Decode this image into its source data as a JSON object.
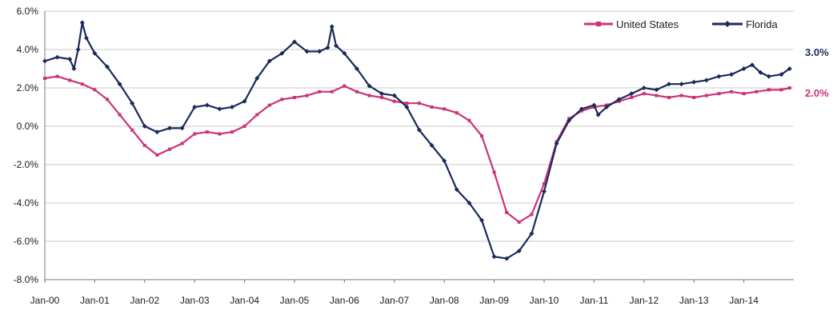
{
  "chart_data": {
    "type": "line",
    "title": "",
    "xlabel": "",
    "ylabel": "",
    "ylim": [
      -8.0,
      6.0
    ],
    "ytick_values": [
      6,
      4,
      2,
      0,
      -2,
      -4,
      -6,
      -8
    ],
    "ytick_labels": [
      "6.0%",
      "4.0%",
      "2.0%",
      "0.0%",
      "-2.0%",
      "-4.0%",
      "-6.0%",
      "-8.0%"
    ],
    "x_ticks": [
      "Jan-00",
      "Jan-01",
      "Jan-02",
      "Jan-03",
      "Jan-04",
      "Jan-05",
      "Jan-06",
      "Jan-07",
      "Jan-08",
      "Jan-09",
      "Jan-10",
      "Jan-11",
      "Jan-12",
      "Jan-13",
      "Jan-14"
    ],
    "x_range": [
      "Jan-00",
      "Dec-14"
    ],
    "grid": "horizontal",
    "legend_position": "top-right",
    "colors": {
      "united_states": "#cc3377",
      "florida": "#1a2a5a",
      "grid": "#c8c8c8"
    },
    "series": [
      {
        "name": "United States",
        "points": [
          [
            "Jan-00",
            2.5
          ],
          [
            "Apr-00",
            2.6
          ],
          [
            "Jul-00",
            2.4
          ],
          [
            "Oct-00",
            2.2
          ],
          [
            "Jan-01",
            1.9
          ],
          [
            "Apr-01",
            1.4
          ],
          [
            "Jul-01",
            0.6
          ],
          [
            "Oct-01",
            -0.2
          ],
          [
            "Jan-02",
            -1.0
          ],
          [
            "Apr-02",
            -1.5
          ],
          [
            "Jul-02",
            -1.2
          ],
          [
            "Oct-02",
            -0.9
          ],
          [
            "Jan-03",
            -0.4
          ],
          [
            "Apr-03",
            -0.3
          ],
          [
            "Jul-03",
            -0.4
          ],
          [
            "Oct-03",
            -0.3
          ],
          [
            "Jan-04",
            0.0
          ],
          [
            "Apr-04",
            0.6
          ],
          [
            "Jul-04",
            1.1
          ],
          [
            "Oct-04",
            1.4
          ],
          [
            "Jan-05",
            1.5
          ],
          [
            "Apr-05",
            1.6
          ],
          [
            "Jul-05",
            1.8
          ],
          [
            "Oct-05",
            1.8
          ],
          [
            "Jan-06",
            2.1
          ],
          [
            "Apr-06",
            1.8
          ],
          [
            "Jul-06",
            1.6
          ],
          [
            "Oct-06",
            1.5
          ],
          [
            "Jan-07",
            1.3
          ],
          [
            "Apr-07",
            1.2
          ],
          [
            "Jul-07",
            1.2
          ],
          [
            "Oct-07",
            1.0
          ],
          [
            "Jan-08",
            0.9
          ],
          [
            "Apr-08",
            0.7
          ],
          [
            "Jul-08",
            0.3
          ],
          [
            "Oct-08",
            -0.5
          ],
          [
            "Jan-09",
            -2.4
          ],
          [
            "Apr-09",
            -4.5
          ],
          [
            "Jul-09",
            -5.0
          ],
          [
            "Oct-09",
            -4.6
          ],
          [
            "Jan-10",
            -3.0
          ],
          [
            "Apr-10",
            -0.8
          ],
          [
            "Jul-10",
            0.4
          ],
          [
            "Oct-10",
            0.8
          ],
          [
            "Jan-11",
            1.0
          ],
          [
            "Apr-11",
            1.1
          ],
          [
            "Jul-11",
            1.3
          ],
          [
            "Oct-11",
            1.5
          ],
          [
            "Jan-12",
            1.7
          ],
          [
            "Apr-12",
            1.6
          ],
          [
            "Jul-12",
            1.5
          ],
          [
            "Oct-12",
            1.6
          ],
          [
            "Jan-13",
            1.5
          ],
          [
            "Apr-13",
            1.6
          ],
          [
            "Jul-13",
            1.7
          ],
          [
            "Oct-13",
            1.8
          ],
          [
            "Jan-14",
            1.7
          ],
          [
            "Apr-14",
            1.8
          ],
          [
            "Jul-14",
            1.9
          ],
          [
            "Oct-14",
            1.9
          ],
          [
            "Dec-14",
            2.0
          ]
        ],
        "end_label": "2.0%"
      },
      {
        "name": "Florida",
        "points": [
          [
            "Jan-00",
            3.4
          ],
          [
            "Apr-00",
            3.6
          ],
          [
            "Jul-00",
            3.5
          ],
          [
            "Aug-00",
            3.0
          ],
          [
            "Sep-00",
            4.0
          ],
          [
            "Oct-00",
            5.4
          ],
          [
            "Nov-00",
            4.6
          ],
          [
            "Jan-01",
            3.8
          ],
          [
            "Apr-01",
            3.1
          ],
          [
            "Jul-01",
            2.2
          ],
          [
            "Oct-01",
            1.2
          ],
          [
            "Jan-02",
            0.0
          ],
          [
            "Apr-02",
            -0.3
          ],
          [
            "Jul-02",
            -0.1
          ],
          [
            "Oct-02",
            -0.1
          ],
          [
            "Jan-03",
            1.0
          ],
          [
            "Apr-03",
            1.1
          ],
          [
            "Jul-03",
            0.9
          ],
          [
            "Oct-03",
            1.0
          ],
          [
            "Jan-04",
            1.3
          ],
          [
            "Apr-04",
            2.5
          ],
          [
            "Jul-04",
            3.4
          ],
          [
            "Oct-04",
            3.8
          ],
          [
            "Jan-05",
            4.4
          ],
          [
            "Apr-05",
            3.9
          ],
          [
            "Jul-05",
            3.9
          ],
          [
            "Sep-05",
            4.1
          ],
          [
            "Oct-05",
            5.2
          ],
          [
            "Nov-05",
            4.2
          ],
          [
            "Jan-06",
            3.8
          ],
          [
            "Apr-06",
            3.0
          ],
          [
            "Jul-06",
            2.1
          ],
          [
            "Oct-06",
            1.7
          ],
          [
            "Jan-07",
            1.6
          ],
          [
            "Apr-07",
            1.0
          ],
          [
            "Jul-07",
            -0.2
          ],
          [
            "Oct-07",
            -1.0
          ],
          [
            "Jan-08",
            -1.8
          ],
          [
            "Apr-08",
            -3.3
          ],
          [
            "Jul-08",
            -4.0
          ],
          [
            "Oct-08",
            -4.9
          ],
          [
            "Jan-09",
            -6.8
          ],
          [
            "Apr-09",
            -6.9
          ],
          [
            "Jul-09",
            -6.5
          ],
          [
            "Oct-09",
            -5.6
          ],
          [
            "Jan-10",
            -3.4
          ],
          [
            "Apr-10",
            -0.9
          ],
          [
            "Jul-10",
            0.3
          ],
          [
            "Oct-10",
            0.9
          ],
          [
            "Jan-11",
            1.1
          ],
          [
            "Feb-11",
            0.6
          ],
          [
            "Apr-11",
            1.0
          ],
          [
            "Jul-11",
            1.4
          ],
          [
            "Oct-11",
            1.7
          ],
          [
            "Jan-12",
            2.0
          ],
          [
            "Apr-12",
            1.9
          ],
          [
            "Jul-12",
            2.2
          ],
          [
            "Oct-12",
            2.2
          ],
          [
            "Jan-13",
            2.3
          ],
          [
            "Apr-13",
            2.4
          ],
          [
            "Jul-13",
            2.6
          ],
          [
            "Oct-13",
            2.7
          ],
          [
            "Jan-14",
            3.0
          ],
          [
            "Mar-14",
            3.2
          ],
          [
            "May-14",
            2.8
          ],
          [
            "Jul-14",
            2.6
          ],
          [
            "Oct-14",
            2.7
          ],
          [
            "Dec-14",
            3.0
          ]
        ],
        "end_label": "3.0%"
      }
    ]
  }
}
